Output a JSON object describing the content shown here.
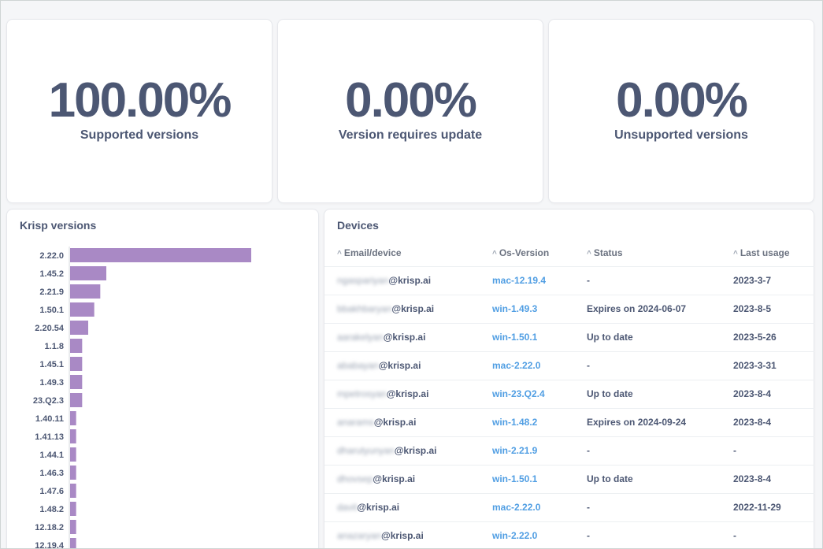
{
  "kpis": [
    {
      "value": "100.00%",
      "label": "Supported versions"
    },
    {
      "value": "0.00%",
      "label": "Version requires update"
    },
    {
      "value": "0.00%",
      "label": "Unsupported versions"
    }
  ],
  "versions_card": {
    "title": "Krisp versions"
  },
  "chart_data": {
    "type": "bar",
    "orientation": "horizontal",
    "title": "",
    "categories": [
      "2.22.0",
      "1.45.2",
      "2.21.9",
      "1.50.1",
      "2.20.54",
      "1.1.8",
      "1.45.1",
      "1.49.3",
      "23.Q2.3",
      "1.40.11",
      "1.41.13",
      "1.44.1",
      "1.46.3",
      "1.47.6",
      "1.48.2",
      "12.18.2",
      "12.19.4"
    ],
    "values": [
      30,
      6,
      5,
      4,
      3,
      2,
      2,
      2,
      2,
      1,
      1,
      1,
      1,
      1,
      1,
      1,
      1
    ],
    "xlabel": "",
    "ylabel": "",
    "xlim": [
      0,
      30
    ],
    "color": "#a989c5",
    "grid": false
  },
  "devices_card": {
    "title": "Devices",
    "columns": [
      "Email/device",
      "Os-Version",
      "Status",
      "Last usage"
    ],
    "sort_icon": "caret-up-icon",
    "rows": [
      {
        "email_local": "ngaspariyan",
        "email_domain": "@krisp.ai",
        "os": "mac-12.19.4",
        "status": "-",
        "last_usage": "2023-3-7"
      },
      {
        "email_local": "bbakhbaryan",
        "email_domain": "@krisp.ai",
        "os": "win-1.49.3",
        "status": "Expires on 2024-06-07",
        "last_usage": "2023-8-5"
      },
      {
        "email_local": "aarakelyan",
        "email_domain": "@krisp.ai",
        "os": "win-1.50.1",
        "status": "Up to date",
        "last_usage": "2023-5-26"
      },
      {
        "email_local": "ababayan",
        "email_domain": "@krisp.ai",
        "os": "mac-2.22.0",
        "status": "-",
        "last_usage": "2023-3-31"
      },
      {
        "email_local": "mpetrosyan",
        "email_domain": "@krisp.ai",
        "os": "win-23.Q2.4",
        "status": "Up to date",
        "last_usage": "2023-8-4"
      },
      {
        "email_local": "anarams",
        "email_domain": "@krisp.ai",
        "os": "win-1.48.2",
        "status": "Expires on 2024-09-24",
        "last_usage": "2023-8-4"
      },
      {
        "email_local": "dharutyunyan",
        "email_domain": "@krisp.ai",
        "os": "win-2.21.9",
        "status": "-",
        "last_usage": "-"
      },
      {
        "email_local": "dhovsep",
        "email_domain": "@krisp.ai",
        "os": "win-1.50.1",
        "status": "Up to date",
        "last_usage": "2023-8-4"
      },
      {
        "email_local": "davit",
        "email_domain": "@krisp.ai",
        "os": "mac-2.22.0",
        "status": "-",
        "last_usage": "2022-11-29"
      },
      {
        "email_local": "anazaryan",
        "email_domain": "@krisp.ai",
        "os": "win-2.22.0",
        "status": "-",
        "last_usage": "-"
      }
    ]
  },
  "colors": {
    "text": "#4c5773",
    "link": "#509ee3",
    "bar": "#a989c5"
  }
}
